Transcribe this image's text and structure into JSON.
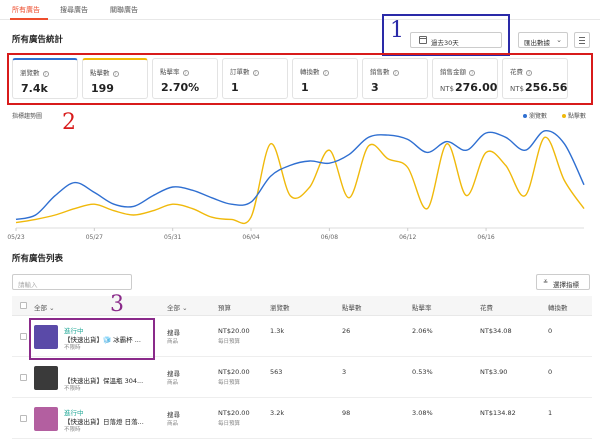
{
  "tabs": [
    {
      "label": "所有廣告"
    },
    {
      "label": "搜尋廣告"
    },
    {
      "label": "關聯廣告"
    }
  ],
  "stats_title": "所有廣告統計",
  "date_range": "過去30天",
  "export_label": "匯出數據",
  "metrics": [
    {
      "label": "瀏覽數",
      "value": "7.4k",
      "currency": ""
    },
    {
      "label": "點擊數",
      "value": "199",
      "currency": ""
    },
    {
      "label": "點擊率",
      "value": "2.70%",
      "currency": ""
    },
    {
      "label": "訂單數",
      "value": "1",
      "currency": ""
    },
    {
      "label": "轉換數",
      "value": "1",
      "currency": ""
    },
    {
      "label": "銷售數",
      "value": "3",
      "currency": ""
    },
    {
      "label": "銷售金額",
      "value": "276.00",
      "currency": "NT$"
    },
    {
      "label": "花費",
      "value": "256.56",
      "currency": "NT$"
    }
  ],
  "chart_label": "指標趨勢圖",
  "chart_data": {
    "type": "line",
    "x": [
      "05/23",
      "05/24",
      "05/25",
      "05/26",
      "05/27",
      "05/28",
      "05/29",
      "05/30",
      "05/31",
      "06/01",
      "06/02",
      "06/03",
      "06/04",
      "06/05",
      "06/06",
      "06/07",
      "06/08",
      "06/09",
      "06/10",
      "06/11",
      "06/12",
      "06/13",
      "06/14",
      "06/15",
      "06/16",
      "06/17",
      "06/18",
      "06/19",
      "06/20",
      "06/21"
    ],
    "x_ticks": [
      "05/23",
      "05/27",
      "05/31",
      "06/04",
      "06/08",
      "06/12",
      "06/16"
    ],
    "series": [
      {
        "name": "瀏覽數",
        "color": "#2f6fd1",
        "values": [
          8,
          12,
          30,
          42,
          33,
          22,
          20,
          30,
          38,
          35,
          28,
          22,
          24,
          48,
          58,
          62,
          60,
          68,
          84,
          86,
          82,
          70,
          80,
          72,
          88,
          84,
          72,
          90,
          78,
          40
        ]
      },
      {
        "name": "點擊數",
        "color": "#f0b90b",
        "values": [
          5,
          8,
          12,
          18,
          22,
          16,
          12,
          16,
          22,
          18,
          10,
          8,
          10,
          78,
          30,
          38,
          72,
          28,
          76,
          64,
          56,
          18,
          78,
          30,
          70,
          58,
          30,
          84,
          44,
          18
        ]
      }
    ],
    "ylim": [
      0,
      100
    ],
    "legend_position": "top-right",
    "grid": false
  },
  "list_title": "所有廣告列表",
  "search_placeholder": "請輸入",
  "select_metrics_label": "選擇指標",
  "columns": {
    "all": "全部",
    "type_all": "全部",
    "budget": "預算",
    "views": "瀏覽數",
    "clicks": "點擊數",
    "ctr": "點擊率",
    "spend": "花費",
    "conversions": "轉換數"
  },
  "rows": [
    {
      "status": "進行中",
      "name": "【快速出貨】🧊 冰霸杯 ...",
      "tag": "不限時",
      "type": "搜尋",
      "type_sub": "商品",
      "budget": "NT$20.00",
      "budget_sub": "每日預算",
      "views": "1.3k",
      "clicks": "26",
      "ctr": "2.06%",
      "spend": "NT$34.08",
      "conv": "0",
      "thumb": "#5a4aa8"
    },
    {
      "status": "",
      "name": "【快速出貨】保溫瓶 304...",
      "tag": "不限時",
      "type": "搜尋",
      "type_sub": "商品",
      "budget": "NT$20.00",
      "budget_sub": "每日預算",
      "views": "563",
      "clicks": "3",
      "ctr": "0.53%",
      "spend": "NT$3.90",
      "conv": "0",
      "thumb": "#3a3a3a"
    },
    {
      "status": "進行中",
      "name": "【快速出貨】日落燈 日落...",
      "tag": "不限時",
      "type": "搜尋",
      "type_sub": "商品",
      "budget": "NT$20.00",
      "budget_sub": "每日預算",
      "views": "3.2k",
      "clicks": "98",
      "ctr": "3.08%",
      "spend": "NT$134.82",
      "conv": "1",
      "thumb": "#b35fa0"
    }
  ],
  "annotations": [
    "1",
    "2",
    "3"
  ]
}
